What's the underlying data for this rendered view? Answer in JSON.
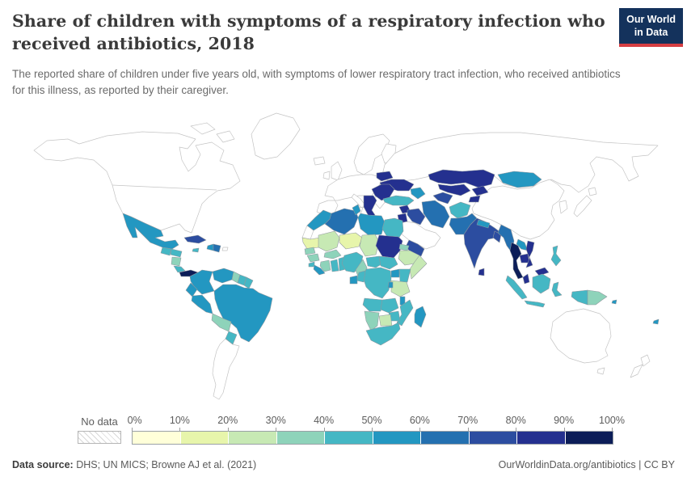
{
  "header": {
    "title": "Share of children with symptoms of a respiratory infection who received antibiotics, 2018",
    "subtitle": "The reported share of children under five years old, with symptoms of lower respiratory tract infection, who received antibiotics for this illness, as reported by their caregiver.",
    "logo": {
      "line1": "Our World",
      "line2": "in Data",
      "bg_color": "#14325c",
      "accent_color": "#d63e42"
    }
  },
  "legend": {
    "no_data_label": "No data",
    "tick_labels": [
      "0%",
      "10%",
      "20%",
      "30%",
      "40%",
      "50%",
      "60%",
      "70%",
      "80%",
      "90%",
      "100%"
    ],
    "colors": [
      "#ffffd9",
      "#e7f5ab",
      "#c7e9b4",
      "#8ed3ba",
      "#45b7c4",
      "#2397c1",
      "#2470b0",
      "#2c4da0",
      "#24308f",
      "#0c1d58"
    ]
  },
  "footer": {
    "source_label": "Data source:",
    "source_text": " DHS; UN MICS; Browne AJ et al. (2021)",
    "credit_text": "OurWorldinData.org/antibiotics | CC BY"
  },
  "chart_data": {
    "type": "choropleth",
    "title": "Share of children with symptoms of a respiratory infection who received antibiotics",
    "year": 2018,
    "unit": "%",
    "bin_edges": [
      0,
      10,
      20,
      30,
      40,
      50,
      60,
      70,
      80,
      90,
      100
    ],
    "legend_position": "bottom",
    "regions": [
      {
        "id": "mexico",
        "name": "Mexico",
        "value": 55
      },
      {
        "id": "guatemala",
        "name": "Guatemala",
        "value": 45
      },
      {
        "id": "honduras",
        "name": "Honduras",
        "value": 45
      },
      {
        "id": "nicaragua",
        "name": "Nicaragua",
        "value": 35
      },
      {
        "id": "costa-rica",
        "name": "Costa Rica",
        "value": 45
      },
      {
        "id": "panama",
        "name": "Panama",
        "value": 95
      },
      {
        "id": "cuba",
        "name": "Cuba",
        "value": 75
      },
      {
        "id": "jamaica",
        "name": "Jamaica",
        "value": 45
      },
      {
        "id": "haiti",
        "name": "Haiti",
        "value": 55
      },
      {
        "id": "dominican-republic",
        "name": "Dominican Republic",
        "value": 65
      },
      {
        "id": "colombia",
        "name": "Colombia",
        "value": 55
      },
      {
        "id": "venezuela",
        "name": "Venezuela",
        "value": 55
      },
      {
        "id": "guyana",
        "name": "Guyana",
        "value": 35
      },
      {
        "id": "suriname",
        "name": "Suriname",
        "value": 45
      },
      {
        "id": "french-guiana",
        "name": "French Guiana",
        "value": 45
      },
      {
        "id": "ecuador",
        "name": "Ecuador",
        "value": 55
      },
      {
        "id": "peru",
        "name": "Peru",
        "value": 55
      },
      {
        "id": "brazil",
        "name": "Brazil",
        "value": 55
      },
      {
        "id": "bolivia",
        "name": "Bolivia",
        "value": 35
      },
      {
        "id": "paraguay",
        "name": "Paraguay",
        "value": 45
      },
      {
        "id": "belarus",
        "name": "Belarus",
        "value": 85
      },
      {
        "id": "ukraine",
        "name": "Ukraine",
        "value": 85
      },
      {
        "id": "romania-moldova",
        "name": "Romania / Moldova",
        "value": 85
      },
      {
        "id": "balkans",
        "name": "Serbia / Balkans",
        "value": 85
      },
      {
        "id": "turkey",
        "name": "Turkey",
        "value": 45
      },
      {
        "id": "caucasus",
        "name": "Caucasus",
        "value": 55
      },
      {
        "id": "syria",
        "name": "Syria",
        "value": 85
      },
      {
        "id": "jordan",
        "name": "Jordan",
        "value": 85
      },
      {
        "id": "iraq",
        "name": "Iraq",
        "value": 75
      },
      {
        "id": "iran",
        "name": "Iran",
        "value": 65
      },
      {
        "id": "yemen",
        "name": "Yemen",
        "value": 75
      },
      {
        "id": "kazakhstan",
        "name": "Kazakhstan",
        "value": 85
      },
      {
        "id": "uzbekistan",
        "name": "Uzbekistan",
        "value": 85
      },
      {
        "id": "turkmenistan",
        "name": "Turkmenistan",
        "value": 75
      },
      {
        "id": "kyrgyzstan",
        "name": "Kyrgyzstan",
        "value": 85
      },
      {
        "id": "tajikistan",
        "name": "Tajikistan",
        "value": 85
      },
      {
        "id": "afghanistan",
        "name": "Afghanistan",
        "value": 45
      },
      {
        "id": "pakistan",
        "name": "Pakistan",
        "value": 65
      },
      {
        "id": "india",
        "name": "India",
        "value": 75
      },
      {
        "id": "nepal",
        "name": "Nepal",
        "value": 55
      },
      {
        "id": "bangladesh",
        "name": "Bangladesh",
        "value": 75
      },
      {
        "id": "sri-lanka",
        "name": "Sri Lanka",
        "value": 85
      },
      {
        "id": "myanmar",
        "name": "Myanmar",
        "value": 65
      },
      {
        "id": "thailand",
        "name": "Thailand",
        "value": 95
      },
      {
        "id": "laos",
        "name": "Laos",
        "value": 55
      },
      {
        "id": "cambodia",
        "name": "Cambodia",
        "value": 85
      },
      {
        "id": "vietnam",
        "name": "Vietnam",
        "value": 85
      },
      {
        "id": "malaysia",
        "name": "Malaysia",
        "value": 85
      },
      {
        "id": "malaysia-borneo",
        "name": "Malaysia (Borneo)",
        "value": 85
      },
      {
        "id": "mongolia",
        "name": "Mongolia",
        "value": 55
      },
      {
        "id": "philippines",
        "name": "Philippines",
        "value": 45
      },
      {
        "id": "indonesia-sumatra",
        "name": "Indonesia",
        "value": 45
      },
      {
        "id": "indonesia-java",
        "name": "Indonesia (Java)",
        "value": 45
      },
      {
        "id": "indonesia-kalimantan",
        "name": "Indonesia (Kalimantan)",
        "value": 45
      },
      {
        "id": "indonesia-sulawesi",
        "name": "Indonesia (Sulawesi)",
        "value": 45
      },
      {
        "id": "indonesia-papua",
        "name": "Indonesia (Papua)",
        "value": 45
      },
      {
        "id": "papua-new-guinea",
        "name": "Papua New Guinea",
        "value": 35
      },
      {
        "id": "solomon-islands",
        "name": "Solomon Islands",
        "value": 55
      },
      {
        "id": "fiji",
        "name": "Fiji",
        "value": 55
      },
      {
        "id": "morocco",
        "name": "Morocco",
        "value": 55
      },
      {
        "id": "algeria",
        "name": "Algeria",
        "value": 65
      },
      {
        "id": "tunisia",
        "name": "Tunisia",
        "value": 55
      },
      {
        "id": "libya",
        "name": "Libya",
        "value": 55
      },
      {
        "id": "egypt",
        "name": "Egypt",
        "value": 45
      },
      {
        "id": "mauritania",
        "name": "Mauritania",
        "value": 15
      },
      {
        "id": "mali",
        "name": "Mali",
        "value": 25
      },
      {
        "id": "niger",
        "name": "Niger",
        "value": 15
      },
      {
        "id": "chad",
        "name": "Chad",
        "value": 25
      },
      {
        "id": "sudan",
        "name": "Sudan",
        "value": 85
      },
      {
        "id": "eritrea",
        "name": "Eritrea",
        "value": 35
      },
      {
        "id": "ethiopia",
        "name": "Ethiopia",
        "value": 25
      },
      {
        "id": "somalia",
        "name": "Somalia",
        "value": 25
      },
      {
        "id": "senegal",
        "name": "Senegal",
        "value": 35
      },
      {
        "id": "guinea",
        "name": "Guinea",
        "value": 35
      },
      {
        "id": "sierra-leone",
        "name": "Sierra Leone",
        "value": 45
      },
      {
        "id": "liberia",
        "name": "Liberia",
        "value": 55
      },
      {
        "id": "cote-divoire",
        "name": "Cote d'Ivoire",
        "value": 35
      },
      {
        "id": "ghana",
        "name": "Ghana",
        "value": 45
      },
      {
        "id": "togo-benin",
        "name": "Togo / Benin",
        "value": 45
      },
      {
        "id": "burkina-faso",
        "name": "Burkina Faso",
        "value": 35
      },
      {
        "id": "nigeria",
        "name": "Nigeria",
        "value": 45
      },
      {
        "id": "cameroon",
        "name": "Cameroon",
        "value": 35
      },
      {
        "id": "central-african-republic",
        "name": "Central African Republic",
        "value": 45
      },
      {
        "id": "south-sudan",
        "name": "South Sudan",
        "value": 45
      },
      {
        "id": "uganda",
        "name": "Uganda",
        "value": 55
      },
      {
        "id": "kenya",
        "name": "Kenya",
        "value": 45
      },
      {
        "id": "drc",
        "name": "Democratic Republic of Congo",
        "value": 45
      },
      {
        "id": "congo",
        "name": "Congo",
        "value": 45
      },
      {
        "id": "gabon",
        "name": "Gabon",
        "value": 55
      },
      {
        "id": "angola",
        "name": "Angola",
        "value": 45
      },
      {
        "id": "zambia",
        "name": "Zambia",
        "value": 45
      },
      {
        "id": "tanzania",
        "name": "Tanzania",
        "value": 25
      },
      {
        "id": "rwanda-burundi",
        "name": "Rwanda / Burundi",
        "value": 55
      },
      {
        "id": "malawi",
        "name": "Malawi",
        "value": 55
      },
      {
        "id": "mozambique",
        "name": "Mozambique",
        "value": 45
      },
      {
        "id": "zimbabwe",
        "name": "Zimbabwe",
        "value": 45
      },
      {
        "id": "botswana",
        "name": "Botswana",
        "value": 25
      },
      {
        "id": "namibia",
        "name": "Namibia",
        "value": 35
      },
      {
        "id": "south-africa",
        "name": "South Africa",
        "value": 45
      },
      {
        "id": "madagascar",
        "name": "Madagascar",
        "value": 55
      }
    ],
    "no_data_regions": [
      "north-america",
      "arctic-island-1",
      "arctic-island-2",
      "greenland",
      "iceland",
      "united-kingdom",
      "ireland",
      "scandinavia",
      "finland",
      "western-europe",
      "italy",
      "sicily",
      "greece",
      "russia",
      "china",
      "korea",
      "japan-honshu",
      "japan-hokkaido",
      "saudi-oman",
      "western-sahara",
      "argentina-chile",
      "australia",
      "tasmania",
      "new-zealand-north",
      "new-zealand-south",
      "puerto-rico"
    ]
  }
}
